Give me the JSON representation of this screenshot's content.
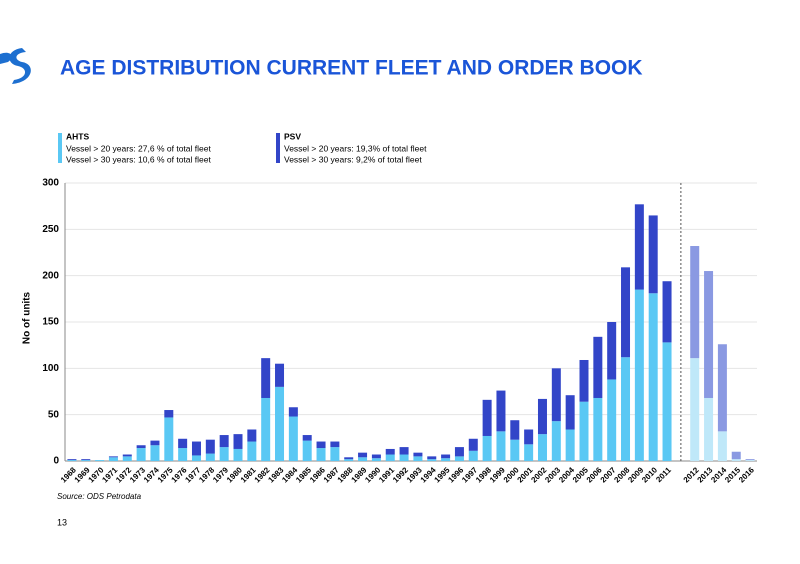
{
  "chart_data": {
    "type": "bar",
    "stacked": true,
    "title": "AGE DISTRIBUTION CURRENT FLEET AND ORDER BOOK",
    "ylabel": "No of units",
    "source": "Source: ODS Petrodata",
    "page_number": "13",
    "categories": [
      "1968",
      "1969",
      "1970",
      "1971",
      "1972",
      "1973",
      "1974",
      "1975",
      "1976",
      "1977",
      "1978",
      "1979",
      "1980",
      "1981",
      "1982",
      "1983",
      "1984",
      "1985",
      "1986",
      "1987",
      "1988",
      "1989",
      "1990",
      "1991",
      "1992",
      "1993",
      "1994",
      "1995",
      "1996",
      "1997",
      "1998",
      "1999",
      "2000",
      "2001",
      "2002",
      "2003",
      "2004",
      "2005",
      "2006",
      "2007",
      "2008",
      "2009",
      "2010",
      "2011",
      null,
      "2012",
      "2013",
      "2014",
      "2015",
      "2016"
    ],
    "series": [
      {
        "name": "AHTS",
        "notes": [
          "Vessel > 20 years: 27,6 % of total fleet",
          "Vessel > 30 years: 10,6 % of total fleet"
        ],
        "color": "#5ac8f4",
        "values": [
          1,
          1,
          1,
          4,
          5,
          14,
          17,
          47,
          14,
          6,
          8,
          15,
          13,
          21,
          68,
          80,
          48,
          22,
          14,
          15,
          2,
          4,
          3,
          7,
          7,
          5,
          2,
          3,
          5,
          11,
          27,
          32,
          23,
          18,
          29,
          43,
          34,
          64,
          68,
          88,
          112,
          185,
          181,
          128,
          null,
          111,
          68,
          32,
          2,
          1
        ],
        "colors": [
          "#5ac8f4",
          "#5ac8f4",
          "#5ac8f4",
          "#5ac8f4",
          "#5ac8f4",
          "#5ac8f4",
          "#5ac8f4",
          "#5ac8f4",
          "#5ac8f4",
          "#5ac8f4",
          "#5ac8f4",
          "#5ac8f4",
          "#5ac8f4",
          "#5ac8f4",
          "#5ac8f4",
          "#5ac8f4",
          "#5ac8f4",
          "#5ac8f4",
          "#5ac8f4",
          "#5ac8f4",
          "#5ac8f4",
          "#5ac8f4",
          "#5ac8f4",
          "#5ac8f4",
          "#5ac8f4",
          "#5ac8f4",
          "#5ac8f4",
          "#5ac8f4",
          "#5ac8f4",
          "#5ac8f4",
          "#5ac8f4",
          "#5ac8f4",
          "#5ac8f4",
          "#5ac8f4",
          "#5ac8f4",
          "#5ac8f4",
          "#5ac8f4",
          "#5ac8f4",
          "#5ac8f4",
          "#5ac8f4",
          "#5ac8f4",
          "#5ac8f4",
          "#5ac8f4",
          "#5ac8f4",
          null,
          "#bfe8f9",
          "#bfe8f9",
          "#bfe8f9",
          "#bfe8f9",
          "#bfe8f9"
        ]
      },
      {
        "name": "PSV",
        "notes": [
          "Vessel > 20 years: 19,3% of total fleet",
          "Vessel > 30 years:   9,2% of total fleet"
        ],
        "color": "#3245c8",
        "values": [
          1,
          1,
          0,
          1,
          2,
          3,
          5,
          8,
          10,
          15,
          15,
          13,
          16,
          13,
          43,
          25,
          10,
          6,
          7,
          6,
          2,
          5,
          4,
          6,
          8,
          4,
          3,
          4,
          10,
          13,
          39,
          44,
          21,
          16,
          38,
          57,
          37,
          45,
          66,
          62,
          97,
          92,
          84,
          66,
          null,
          121,
          137,
          94,
          8,
          1
        ],
        "colors": [
          "#3245c8",
          "#3245c8",
          "#3245c8",
          "#3245c8",
          "#3245c8",
          "#3245c8",
          "#3245c8",
          "#3245c8",
          "#3245c8",
          "#3245c8",
          "#3245c8",
          "#3245c8",
          "#3245c8",
          "#3245c8",
          "#3245c8",
          "#3245c8",
          "#3245c8",
          "#3245c8",
          "#3245c8",
          "#3245c8",
          "#3245c8",
          "#3245c8",
          "#3245c8",
          "#3245c8",
          "#3245c8",
          "#3245c8",
          "#3245c8",
          "#3245c8",
          "#3245c8",
          "#3245c8",
          "#3245c8",
          "#3245c8",
          "#3245c8",
          "#3245c8",
          "#3245c8",
          "#3245c8",
          "#3245c8",
          "#3245c8",
          "#3245c8",
          "#3245c8",
          "#3245c8",
          "#3245c8",
          "#3245c8",
          "#3245c8",
          null,
          "#8a99e2",
          "#8a99e2",
          "#8a99e2",
          "#8a99e2",
          "#8a99e2"
        ]
      }
    ],
    "ylim": [
      0,
      300
    ],
    "yticks": [
      0,
      50,
      100,
      150,
      200,
      250,
      300
    ],
    "grid": true
  }
}
